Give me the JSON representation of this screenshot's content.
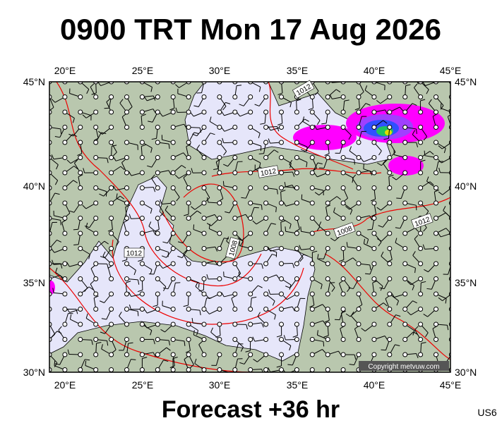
{
  "header": {
    "title": "0900 TRT Mon 17 Aug 2026"
  },
  "map": {
    "lon_labels": [
      "20°E",
      "25°E",
      "30°E",
      "35°E",
      "40°E",
      "45°E"
    ],
    "lat_labels": [
      "45°N",
      "40°N",
      "35°N",
      "30°N"
    ],
    "contour_labels": [
      "1012",
      "1012",
      "1012",
      "1012",
      "1008",
      "1008"
    ],
    "copyright": "Copyright metvuw.com"
  },
  "footer": {
    "forecast": "Forecast +36 hr",
    "code": "US6"
  }
}
